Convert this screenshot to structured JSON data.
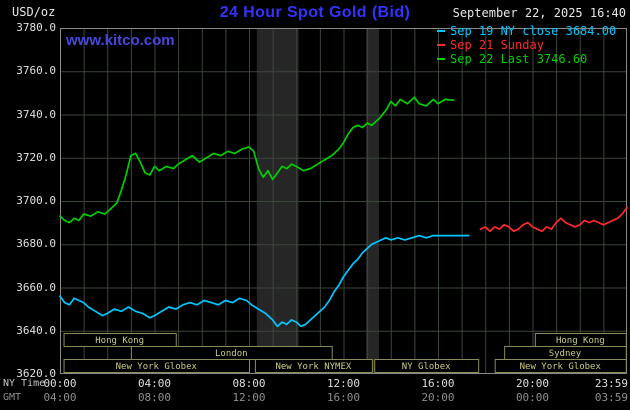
{
  "header": {
    "units": "USD/oz",
    "title": "24 Hour Spot Gold (Bid)",
    "datetime": "September 22, 2025 16:40",
    "watermark": "www.kitco.com"
  },
  "axes": {
    "x_ny_name": "NY Time",
    "x_gmt_name": "GMT"
  },
  "legend": [
    {
      "label": "Sep 19 NY close 3684.00",
      "color_key": "cyan"
    },
    {
      "label": "Sep 21 Sunday",
      "color_key": "red"
    },
    {
      "label": "Sep 22 Last 3746.60",
      "color_key": "green"
    }
  ],
  "colors": {
    "background": "#000000",
    "title_blue": "#3333ff",
    "watermark_blue": "#4747dd",
    "cyan": "#00c8ff",
    "red": "#ff2a2a",
    "green": "#00cf00",
    "grid": "#3b463b",
    "border": "#8a8a8a",
    "band": "#262626",
    "khaki": "#cdcd85",
    "khaki_border": "#8b8b57"
  },
  "chart_data": {
    "type": "line",
    "title": "24 Hour Spot Gold (Bid)",
    "xlabel": "NY Time / GMT",
    "ylabel": "USD/oz",
    "ylim": [
      3620,
      3780
    ],
    "xlim_hours": [
      0,
      24
    ],
    "grid": true,
    "legend_position": "top-right",
    "y_ticks": [
      {
        "value": 3780,
        "label": "3780.0"
      },
      {
        "value": 3760,
        "label": "3760.0"
      },
      {
        "value": 3740,
        "label": "3740.0"
      },
      {
        "value": 3720,
        "label": "3720.0"
      },
      {
        "value": 3700,
        "label": "3700.0"
      },
      {
        "value": 3680,
        "label": "3680.0"
      },
      {
        "value": 3660,
        "label": "3660.0"
      },
      {
        "value": 3640,
        "label": "3640.0"
      },
      {
        "value": 3620,
        "label": "3620.0"
      }
    ],
    "x_ticks": [
      {
        "h": 0,
        "ny": "00:00",
        "gmt": "04:00"
      },
      {
        "h": 4,
        "ny": "04:00",
        "gmt": "08:00"
      },
      {
        "h": 8,
        "ny": "08:00",
        "gmt": "12:00"
      },
      {
        "h": 12,
        "ny": "12:00",
        "gmt": "16:00"
      },
      {
        "h": 16,
        "ny": "16:00",
        "gmt": "20:00"
      },
      {
        "h": 20,
        "ny": "20:00",
        "gmt": "00:00"
      },
      {
        "h": 23.983,
        "ny": "23:59",
        "gmt": "03:59"
      }
    ],
    "shaded_bands": [
      {
        "from": 8.33,
        "to": 10.1
      },
      {
        "from": 12.95,
        "to": 13.5
      }
    ],
    "sessions_rows": [
      [
        {
          "label": "Hong Kong",
          "from": 0.15,
          "to": 4.9
        },
        {
          "label": "Hong Kong",
          "from": 20.1,
          "to": 23.95
        }
      ],
      [
        {
          "label": "London",
          "from": 3.0,
          "to": 11.5
        },
        {
          "label": "Sydney",
          "from": 18.8,
          "to": 23.95
        }
      ],
      [
        {
          "label": "New York Globex",
          "from": 0.15,
          "to": 8.0
        },
        {
          "label": "New York NYMEX",
          "from": 8.25,
          "to": 13.2
        },
        {
          "label": "NY Globex",
          "from": 13.3,
          "to": 17.7
        },
        {
          "label": "New York Globex",
          "from": 18.4,
          "to": 23.95
        }
      ]
    ],
    "series": [
      {
        "id": "sep19",
        "name": "Sep 19 NY close",
        "close_value": 3684.0,
        "color_key": "cyan",
        "points": [
          [
            0,
            3656
          ],
          [
            0.2,
            3653
          ],
          [
            0.4,
            3652
          ],
          [
            0.6,
            3655
          ],
          [
            0.8,
            3654
          ],
          [
            1,
            3653
          ],
          [
            1.2,
            3651
          ],
          [
            1.5,
            3649
          ],
          [
            1.8,
            3647
          ],
          [
            2,
            3648
          ],
          [
            2.3,
            3650
          ],
          [
            2.6,
            3649
          ],
          [
            2.9,
            3651
          ],
          [
            3.2,
            3649
          ],
          [
            3.5,
            3648
          ],
          [
            3.8,
            3646
          ],
          [
            4,
            3647
          ],
          [
            4.3,
            3649
          ],
          [
            4.6,
            3651
          ],
          [
            4.9,
            3650
          ],
          [
            5.2,
            3652
          ],
          [
            5.5,
            3653
          ],
          [
            5.8,
            3652
          ],
          [
            6.1,
            3654
          ],
          [
            6.4,
            3653
          ],
          [
            6.7,
            3652
          ],
          [
            7,
            3654
          ],
          [
            7.3,
            3653
          ],
          [
            7.6,
            3655
          ],
          [
            7.9,
            3654
          ],
          [
            8.1,
            3652
          ],
          [
            8.4,
            3650
          ],
          [
            8.7,
            3648
          ],
          [
            9,
            3645
          ],
          [
            9.2,
            3642
          ],
          [
            9.4,
            3644
          ],
          [
            9.6,
            3643
          ],
          [
            9.8,
            3645
          ],
          [
            10,
            3644
          ],
          [
            10.2,
            3642
          ],
          [
            10.4,
            3643
          ],
          [
            10.6,
            3645
          ],
          [
            10.8,
            3647
          ],
          [
            11,
            3649
          ],
          [
            11.2,
            3651
          ],
          [
            11.4,
            3654
          ],
          [
            11.6,
            3658
          ],
          [
            11.8,
            3661
          ],
          [
            12,
            3665
          ],
          [
            12.2,
            3668
          ],
          [
            12.4,
            3671
          ],
          [
            12.6,
            3673
          ],
          [
            12.8,
            3676
          ],
          [
            13,
            3678
          ],
          [
            13.2,
            3680
          ],
          [
            13.4,
            3681
          ],
          [
            13.6,
            3682
          ],
          [
            13.8,
            3683
          ],
          [
            14,
            3682
          ],
          [
            14.3,
            3683
          ],
          [
            14.6,
            3682
          ],
          [
            14.9,
            3683
          ],
          [
            15.2,
            3684
          ],
          [
            15.5,
            3683
          ],
          [
            15.8,
            3684
          ],
          [
            16.1,
            3684
          ],
          [
            16.4,
            3684
          ],
          [
            16.7,
            3684
          ],
          [
            17,
            3684
          ],
          [
            17.3,
            3684
          ]
        ]
      },
      {
        "id": "sep21",
        "name": "Sep 21 Sunday",
        "color_key": "red",
        "points": [
          [
            17.8,
            3687
          ],
          [
            18,
            3688
          ],
          [
            18.2,
            3686
          ],
          [
            18.4,
            3688
          ],
          [
            18.6,
            3687
          ],
          [
            18.8,
            3689
          ],
          [
            19,
            3688
          ],
          [
            19.2,
            3686
          ],
          [
            19.4,
            3687
          ],
          [
            19.6,
            3689
          ],
          [
            19.8,
            3690
          ],
          [
            20,
            3688
          ],
          [
            20.2,
            3687
          ],
          [
            20.4,
            3686
          ],
          [
            20.6,
            3688
          ],
          [
            20.8,
            3687
          ],
          [
            21,
            3690
          ],
          [
            21.2,
            3692
          ],
          [
            21.4,
            3690
          ],
          [
            21.6,
            3689
          ],
          [
            21.8,
            3688
          ],
          [
            22,
            3689
          ],
          [
            22.2,
            3691
          ],
          [
            22.4,
            3690
          ],
          [
            22.6,
            3691
          ],
          [
            22.8,
            3690
          ],
          [
            23,
            3689
          ],
          [
            23.2,
            3690
          ],
          [
            23.4,
            3691
          ],
          [
            23.6,
            3692
          ],
          [
            23.8,
            3694
          ],
          [
            24,
            3697
          ]
        ]
      },
      {
        "id": "sep22",
        "name": "Sep 22 Last",
        "last_value": 3746.6,
        "color_key": "green",
        "points": [
          [
            0,
            3693
          ],
          [
            0.2,
            3691
          ],
          [
            0.4,
            3690
          ],
          [
            0.6,
            3692
          ],
          [
            0.8,
            3691
          ],
          [
            1,
            3694
          ],
          [
            1.3,
            3693
          ],
          [
            1.6,
            3695
          ],
          [
            1.9,
            3694
          ],
          [
            2.1,
            3696
          ],
          [
            2.4,
            3699
          ],
          [
            2.6,
            3705
          ],
          [
            2.8,
            3712
          ],
          [
            3,
            3721
          ],
          [
            3.2,
            3722
          ],
          [
            3.4,
            3718
          ],
          [
            3.6,
            3713
          ],
          [
            3.8,
            3712
          ],
          [
            4,
            3716
          ],
          [
            4.2,
            3714
          ],
          [
            4.5,
            3716
          ],
          [
            4.8,
            3715
          ],
          [
            5,
            3717
          ],
          [
            5.3,
            3719
          ],
          [
            5.6,
            3721
          ],
          [
            5.9,
            3718
          ],
          [
            6.2,
            3720
          ],
          [
            6.5,
            3722
          ],
          [
            6.8,
            3721
          ],
          [
            7.1,
            3723
          ],
          [
            7.4,
            3722
          ],
          [
            7.7,
            3724
          ],
          [
            8,
            3725
          ],
          [
            8.2,
            3723
          ],
          [
            8.4,
            3715
          ],
          [
            8.6,
            3711
          ],
          [
            8.8,
            3714
          ],
          [
            9,
            3710
          ],
          [
            9.2,
            3713
          ],
          [
            9.4,
            3716
          ],
          [
            9.6,
            3715
          ],
          [
            9.8,
            3717
          ],
          [
            10,
            3716
          ],
          [
            10.3,
            3714
          ],
          [
            10.6,
            3715
          ],
          [
            10.9,
            3717
          ],
          [
            11.2,
            3719
          ],
          [
            11.5,
            3721
          ],
          [
            11.8,
            3724
          ],
          [
            12,
            3727
          ],
          [
            12.2,
            3731
          ],
          [
            12.4,
            3734
          ],
          [
            12.6,
            3735
          ],
          [
            12.8,
            3734
          ],
          [
            13,
            3736
          ],
          [
            13.2,
            3735
          ],
          [
            13.5,
            3738
          ],
          [
            13.8,
            3742
          ],
          [
            14,
            3746
          ],
          [
            14.2,
            3744
          ],
          [
            14.4,
            3747
          ],
          [
            14.7,
            3745
          ],
          [
            15,
            3748
          ],
          [
            15.2,
            3745
          ],
          [
            15.5,
            3744
          ],
          [
            15.8,
            3747
          ],
          [
            16,
            3745
          ],
          [
            16.3,
            3747
          ],
          [
            16.67,
            3746.6
          ]
        ]
      }
    ]
  }
}
